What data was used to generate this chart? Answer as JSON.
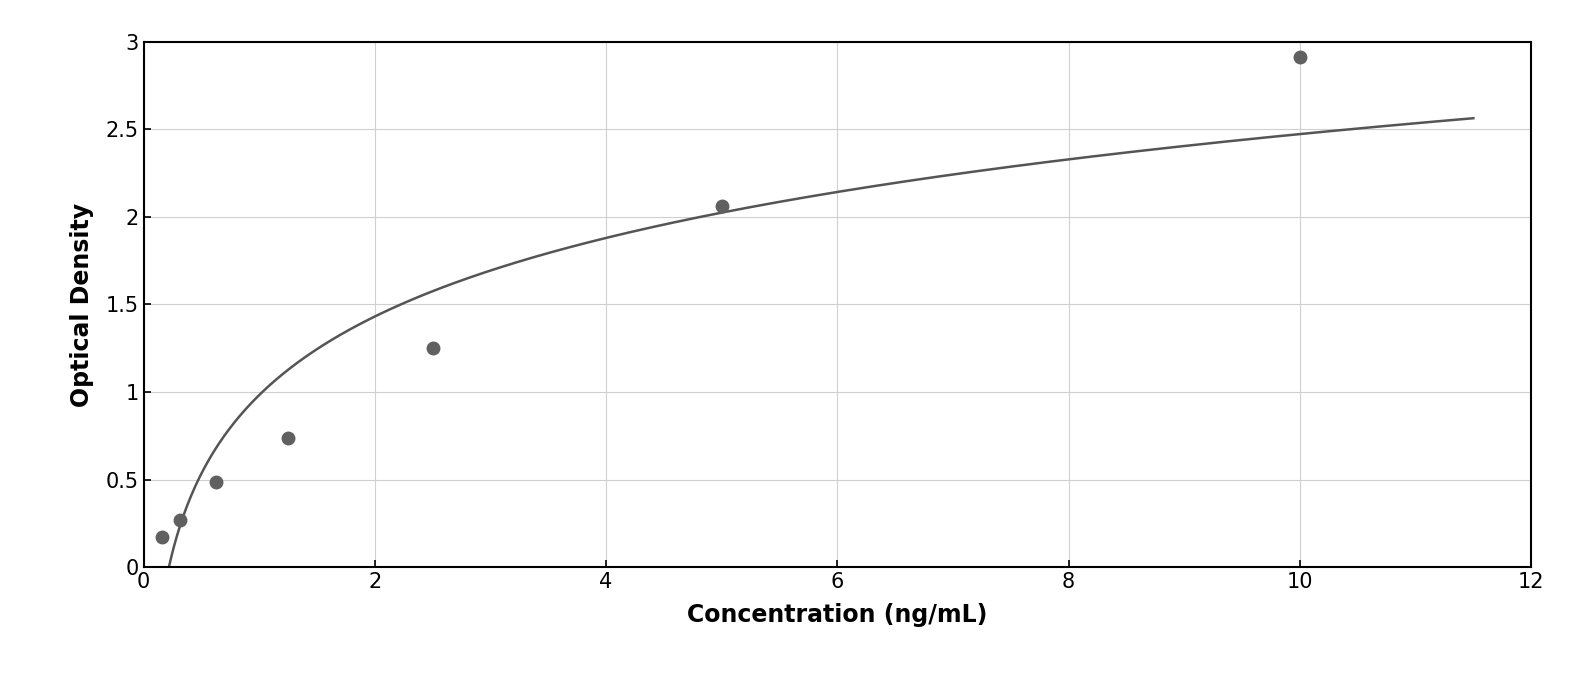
{
  "x_data": [
    0.156,
    0.313,
    0.625,
    1.25,
    2.5,
    5.0,
    10.0
  ],
  "y_data": [
    0.173,
    0.27,
    0.49,
    0.74,
    1.25,
    2.06,
    2.91
  ],
  "xlabel": "Concentration (ng/mL)",
  "ylabel": "Optical Density",
  "xlim": [
    0,
    12
  ],
  "ylim": [
    0,
    3.0
  ],
  "xticks": [
    0,
    2,
    4,
    6,
    8,
    10,
    12
  ],
  "yticks": [
    0,
    0.5,
    1.0,
    1.5,
    2.0,
    2.5,
    3.0
  ],
  "marker_color": "#606060",
  "line_color": "#555555",
  "marker_size": 9,
  "line_width": 1.8,
  "grid_color": "#d0d0d0",
  "background_color": "#ffffff",
  "figure_background": "#ffffff",
  "xlabel_fontsize": 17,
  "ylabel_fontsize": 17,
  "tick_fontsize": 15,
  "xlabel_fontweight": "bold",
  "ylabel_fontweight": "bold"
}
